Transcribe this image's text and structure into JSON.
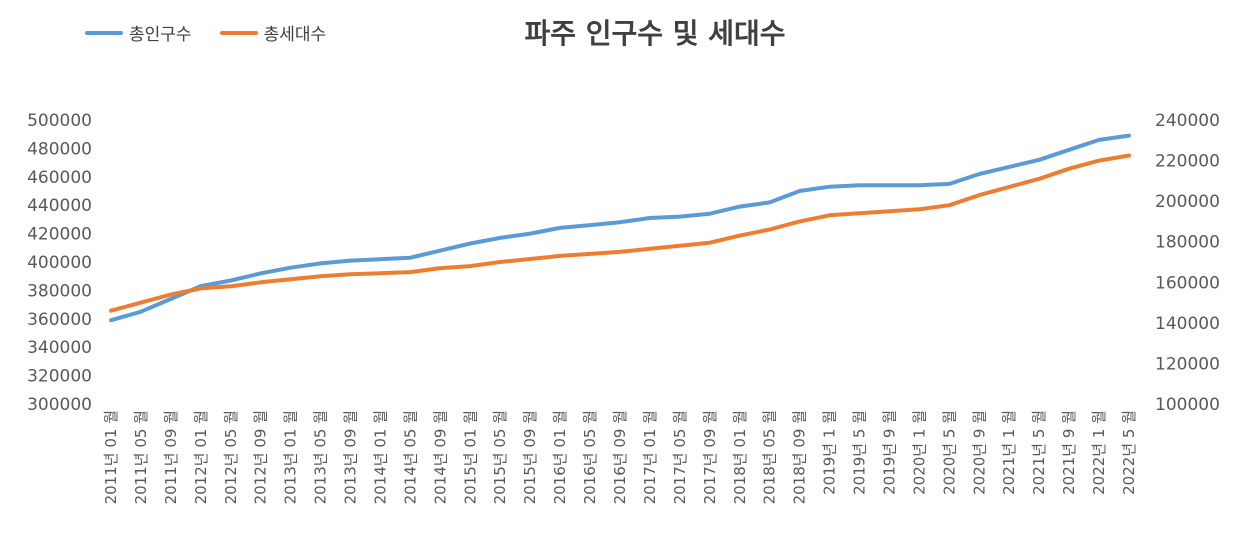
{
  "chart_data": {
    "type": "line",
    "title": "파주 인구수 및 세대수",
    "legend_position": "top-left",
    "grid": false,
    "y_left": {
      "min": 300000,
      "max": 500000,
      "step": 20000,
      "ticks": [
        "500000",
        "480000",
        "460000",
        "440000",
        "420000",
        "400000",
        "380000",
        "360000",
        "340000",
        "320000",
        "300000"
      ]
    },
    "y_right": {
      "min": 100000,
      "max": 240000,
      "step": 20000,
      "ticks": [
        "240000",
        "220000",
        "200000",
        "180000",
        "160000",
        "140000",
        "120000",
        "100000"
      ]
    },
    "x_labels": [
      "2011년 01 월",
      "2011년 05 월",
      "2011년 09 월",
      "2012년 01 월",
      "2012년 05 월",
      "2012년 09 월",
      "2013년 01 월",
      "2013년 05 월",
      "2013년 09 월",
      "2014년 01 월",
      "2014년 05 월",
      "2014년 09 월",
      "2015년 01 월",
      "2015년 05 월",
      "2015년 09 월",
      "2016년 01 월",
      "2016년 05 월",
      "2016년 09 월",
      "2017년 01 월",
      "2017년 05 월",
      "2017년 09 월",
      "2018년 01 월",
      "2018년 05 월",
      "2018년 09 월",
      "2019년 1 월",
      "2019년 5 월",
      "2019년 9 월",
      "2020년 1 월",
      "2020년 5 월",
      "2020년 9 월",
      "2021년 1 월",
      "2021년 5 월",
      "2021년 9 월",
      "2022년 1 월",
      "2022년 5 월"
    ],
    "series": [
      {
        "name": "총인구수",
        "axis": "left",
        "color": "#5B9BD5",
        "values": [
          359000,
          365000,
          374000,
          383000,
          387000,
          392000,
          396000,
          399000,
          401000,
          402000,
          403000,
          408000,
          413000,
          417000,
          420000,
          424000,
          426000,
          428000,
          431000,
          432000,
          434000,
          439000,
          442000,
          450000,
          453000,
          454000,
          454000,
          454000,
          455000,
          462000,
          467000,
          472000,
          479000,
          486000,
          489000
        ]
      },
      {
        "name": "총세대수",
        "axis": "right",
        "color": "#ED7D31",
        "values": [
          146000,
          150000,
          154000,
          157000,
          158000,
          160000,
          161500,
          163000,
          164000,
          164500,
          165000,
          167000,
          168000,
          170000,
          171500,
          173000,
          174000,
          175000,
          176500,
          178000,
          179500,
          183000,
          186000,
          190000,
          193000,
          194000,
          195000,
          196000,
          198000,
          203000,
          207000,
          211000,
          216000,
          220000,
          222500
        ]
      }
    ]
  }
}
